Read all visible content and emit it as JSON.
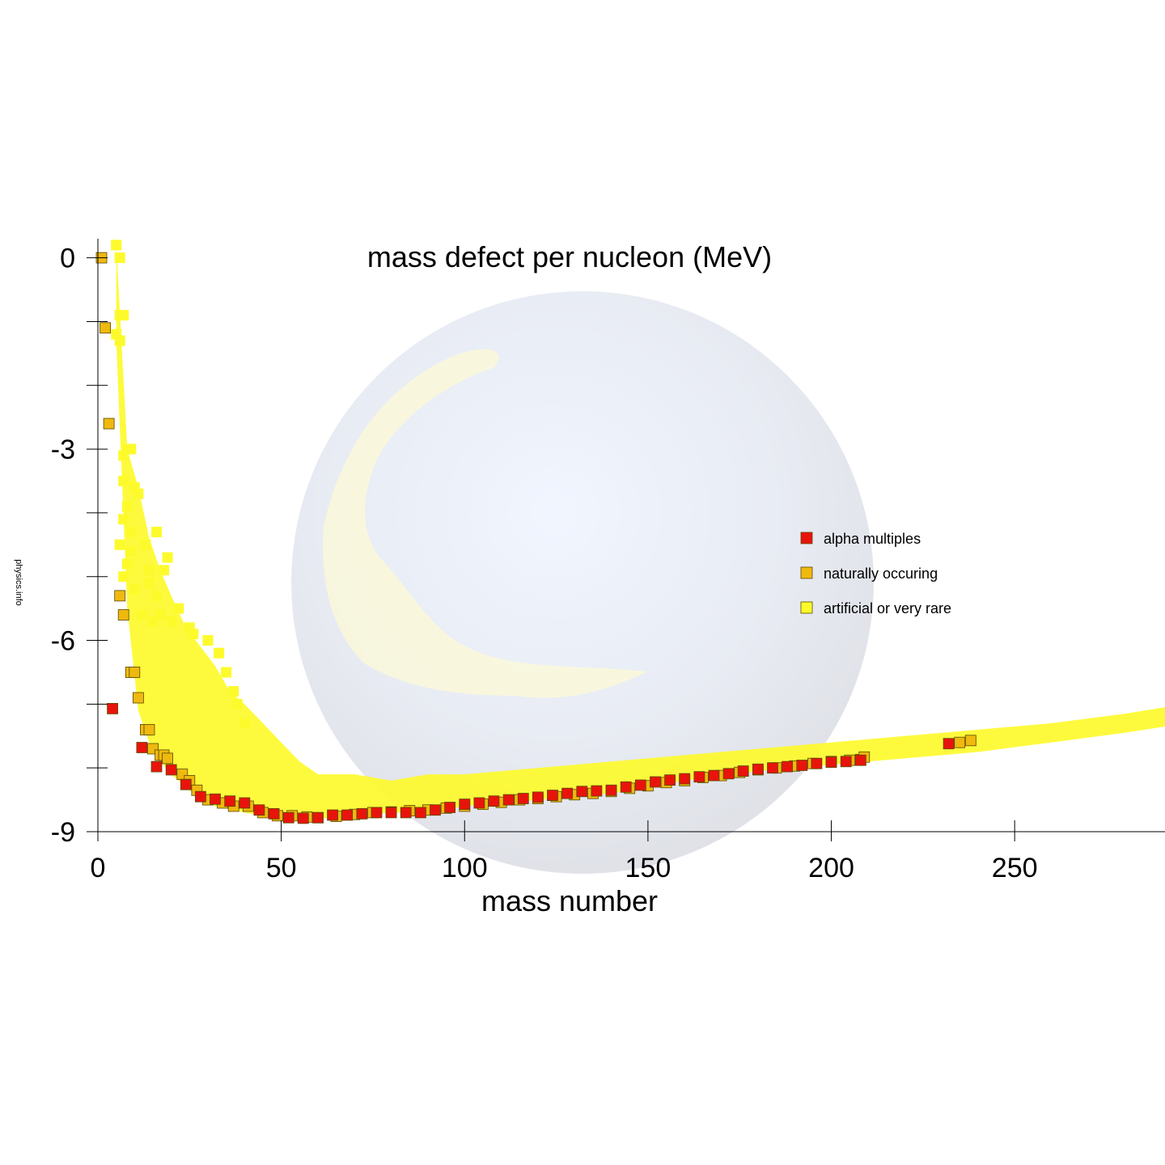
{
  "watermark": "physics.info",
  "colors": {
    "alpha": "#e8140c",
    "natural": "#efb90f",
    "artificial": "#fdfa2c",
    "marker_edge": "#5a4a00",
    "axis": "#000000",
    "globe": "#e6eaf2"
  },
  "chart_data": {
    "type": "scatter",
    "title": "mass defect per nucleon (MeV)",
    "xlabel": "mass number",
    "ylabel": "",
    "xlim": [
      0,
      291
    ],
    "ylim": [
      -9,
      0.3
    ],
    "x_ticks": [
      0,
      50,
      100,
      150,
      200,
      250
    ],
    "x_tick_labels": [
      "0",
      "50",
      "100",
      "150",
      "200",
      "250"
    ],
    "y_ticks": [
      0,
      -1,
      -2,
      -3,
      -4,
      -5,
      -6,
      -7,
      -8,
      -9
    ],
    "y_tick_labels": [
      "0",
      "",
      "",
      "-3",
      "",
      "",
      "-6",
      "",
      "",
      "-9"
    ],
    "grid": false,
    "legend_position": "right",
    "legend": [
      {
        "key": "alpha",
        "label": "alpha multiples"
      },
      {
        "key": "natural",
        "label": "naturally occuring"
      },
      {
        "key": "artificial",
        "label": "artificial or very rare"
      }
    ],
    "series": [
      {
        "key": "artificial",
        "name": "artificial or very rare",
        "description_band": {
          "x": [
            5,
            8,
            11,
            14,
            17,
            20,
            24,
            28,
            32,
            36,
            40,
            45,
            50,
            55,
            60,
            70,
            80,
            90,
            100,
            120,
            140,
            160,
            180,
            200,
            220,
            240,
            260,
            280,
            291
          ],
          "y_top": [
            0.2,
            -3.0,
            -3.6,
            -4.4,
            -4.9,
            -5.3,
            -5.8,
            -6.1,
            -6.4,
            -6.8,
            -7.0,
            -7.3,
            -7.6,
            -7.9,
            -8.1,
            -8.1,
            -8.2,
            -8.1,
            -8.1,
            -8.0,
            -7.9,
            -7.8,
            -7.7,
            -7.6,
            -7.5,
            -7.4,
            -7.3,
            -7.15,
            -7.05
          ],
          "y_bottom": [
            -1.3,
            -5.5,
            -7.1,
            -7.6,
            -7.9,
            -8.1,
            -8.3,
            -8.5,
            -8.6,
            -8.65,
            -8.7,
            -8.75,
            -8.8,
            -8.8,
            -8.8,
            -8.75,
            -8.7,
            -8.7,
            -8.6,
            -8.5,
            -8.4,
            -8.2,
            -8.05,
            -7.95,
            -7.85,
            -7.75,
            -7.6,
            -7.45,
            -7.35
          ]
        },
        "points": [
          [
            5,
            0.2
          ],
          [
            6,
            0.0
          ],
          [
            6,
            -0.9
          ],
          [
            7,
            -0.9
          ],
          [
            5,
            -1.2
          ],
          [
            6,
            -1.3
          ],
          [
            7,
            -3.1
          ],
          [
            8,
            -3.0
          ],
          [
            9,
            -3.0
          ],
          [
            7,
            -3.5
          ],
          [
            8,
            -3.9
          ],
          [
            10,
            -3.6
          ],
          [
            11,
            -3.7
          ],
          [
            7,
            -4.1
          ],
          [
            9,
            -4.3
          ],
          [
            16,
            -4.3
          ],
          [
            6,
            -4.5
          ],
          [
            9,
            -4.6
          ],
          [
            13,
            -4.5
          ],
          [
            8,
            -4.8
          ],
          [
            14,
            -4.9
          ],
          [
            19,
            -4.7
          ],
          [
            18,
            -4.9
          ],
          [
            7,
            -5.0
          ],
          [
            10,
            -5.2
          ],
          [
            14,
            -5.1
          ],
          [
            16,
            -5.3
          ],
          [
            17,
            -5.6
          ],
          [
            22,
            -5.5
          ],
          [
            12,
            -5.6
          ],
          [
            15,
            -5.7
          ],
          [
            20,
            -5.7
          ],
          [
            25,
            -5.8
          ],
          [
            26,
            -5.9
          ],
          [
            30,
            -6.0
          ],
          [
            33,
            -6.2
          ],
          [
            35,
            -6.5
          ],
          [
            37,
            -6.8
          ],
          [
            38,
            -7.0
          ],
          [
            40,
            -7.3
          ]
        ]
      },
      {
        "key": "natural",
        "name": "naturally occuring",
        "points": [
          [
            1,
            0.0
          ],
          [
            2,
            -1.1
          ],
          [
            3,
            -2.6
          ],
          [
            6,
            -5.3
          ],
          [
            7,
            -5.6
          ],
          [
            9,
            -6.5
          ],
          [
            10,
            -6.5
          ],
          [
            11,
            -6.9
          ],
          [
            13,
            -7.4
          ],
          [
            14,
            -7.4
          ],
          [
            15,
            -7.7
          ],
          [
            17,
            -7.8
          ],
          [
            18,
            -7.8
          ],
          [
            19,
            -7.85
          ],
          [
            23,
            -8.1
          ],
          [
            25,
            -8.2
          ],
          [
            27,
            -8.35
          ],
          [
            30,
            -8.5
          ],
          [
            34,
            -8.55
          ],
          [
            37,
            -8.6
          ],
          [
            41,
            -8.6
          ],
          [
            45,
            -8.7
          ],
          [
            49,
            -8.75
          ],
          [
            53,
            -8.75
          ],
          [
            57,
            -8.77
          ],
          [
            60,
            -8.78
          ],
          [
            65,
            -8.76
          ],
          [
            70,
            -8.73
          ],
          [
            75,
            -8.7
          ],
          [
            80,
            -8.69
          ],
          [
            85,
            -8.67
          ],
          [
            90,
            -8.66
          ],
          [
            95,
            -8.63
          ],
          [
            100,
            -8.6
          ],
          [
            105,
            -8.57
          ],
          [
            110,
            -8.54
          ],
          [
            115,
            -8.5
          ],
          [
            120,
            -8.48
          ],
          [
            125,
            -8.45
          ],
          [
            130,
            -8.42
          ],
          [
            135,
            -8.4
          ],
          [
            140,
            -8.37
          ],
          [
            145,
            -8.32
          ],
          [
            150,
            -8.28
          ],
          [
            155,
            -8.23
          ],
          [
            160,
            -8.2
          ],
          [
            165,
            -8.15
          ],
          [
            170,
            -8.12
          ],
          [
            175,
            -8.07
          ],
          [
            180,
            -8.03
          ],
          [
            185,
            -8.0
          ],
          [
            190,
            -7.97
          ],
          [
            195,
            -7.93
          ],
          [
            200,
            -7.9
          ],
          [
            205,
            -7.88
          ],
          [
            208,
            -7.87
          ],
          [
            209,
            -7.83
          ],
          [
            235,
            -7.6
          ],
          [
            238,
            -7.57
          ]
        ]
      },
      {
        "key": "alpha",
        "name": "alpha multiples",
        "points": [
          [
            4,
            -7.07
          ],
          [
            12,
            -7.68
          ],
          [
            16,
            -7.98
          ],
          [
            20,
            -8.03
          ],
          [
            24,
            -8.26
          ],
          [
            28,
            -8.45
          ],
          [
            32,
            -8.49
          ],
          [
            36,
            -8.52
          ],
          [
            40,
            -8.55
          ],
          [
            44,
            -8.66
          ],
          [
            48,
            -8.72
          ],
          [
            52,
            -8.78
          ],
          [
            56,
            -8.79
          ],
          [
            60,
            -8.78
          ],
          [
            64,
            -8.74
          ],
          [
            68,
            -8.74
          ],
          [
            72,
            -8.72
          ],
          [
            76,
            -8.7
          ],
          [
            80,
            -8.7
          ],
          [
            84,
            -8.7
          ],
          [
            88,
            -8.7
          ],
          [
            92,
            -8.66
          ],
          [
            96,
            -8.62
          ],
          [
            100,
            -8.57
          ],
          [
            104,
            -8.55
          ],
          [
            108,
            -8.52
          ],
          [
            112,
            -8.5
          ],
          [
            116,
            -8.48
          ],
          [
            120,
            -8.46
          ],
          [
            124,
            -8.43
          ],
          [
            128,
            -8.4
          ],
          [
            132,
            -8.37
          ],
          [
            136,
            -8.36
          ],
          [
            140,
            -8.35
          ],
          [
            144,
            -8.3
          ],
          [
            148,
            -8.27
          ],
          [
            152,
            -8.22
          ],
          [
            156,
            -8.19
          ],
          [
            160,
            -8.17
          ],
          [
            164,
            -8.14
          ],
          [
            168,
            -8.12
          ],
          [
            172,
            -8.09
          ],
          [
            176,
            -8.05
          ],
          [
            180,
            -8.02
          ],
          [
            184,
            -8.0
          ],
          [
            188,
            -7.98
          ],
          [
            192,
            -7.96
          ],
          [
            196,
            -7.93
          ],
          [
            200,
            -7.91
          ],
          [
            204,
            -7.9
          ],
          [
            208,
            -7.88
          ],
          [
            232,
            -7.62
          ]
        ]
      }
    ]
  }
}
